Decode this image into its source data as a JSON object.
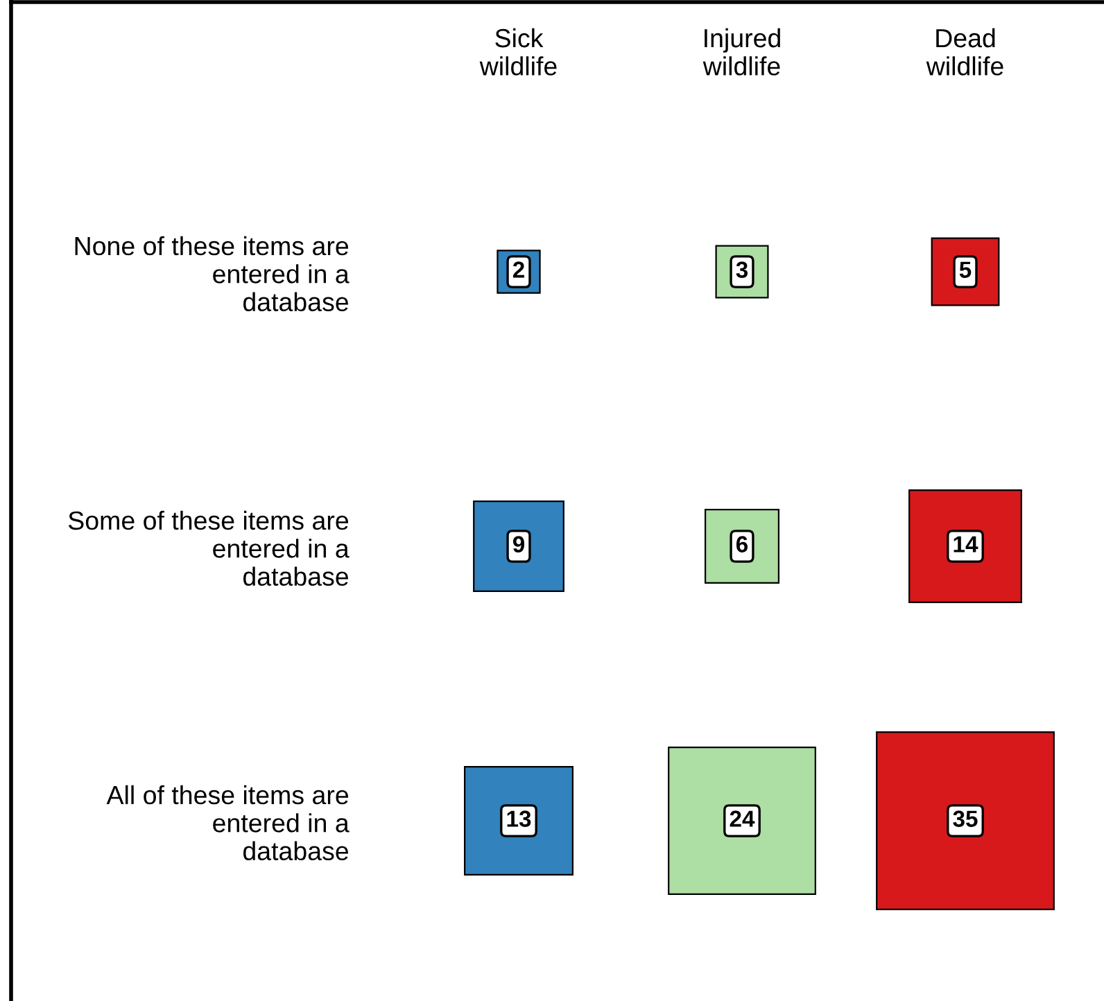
{
  "chart_data": {
    "type": "heatmap",
    "marker": "square",
    "data_labels": true,
    "categories": [
      "Sick\nwildlife",
      "Injured\nwildlife",
      "Dead\nwildlife"
    ],
    "y_categories": [
      "None of these items are\nentered in a\ndatabase",
      "Some of these items are\nentered in a\ndatabase",
      "All of these items are\nentered in a\ndatabase"
    ],
    "colors": [
      "#3182bd",
      "#addea3",
      "#d7191c"
    ],
    "cells": [
      [
        2,
        3,
        5
      ],
      [
        9,
        6,
        14
      ],
      [
        13,
        24,
        35
      ]
    ]
  }
}
